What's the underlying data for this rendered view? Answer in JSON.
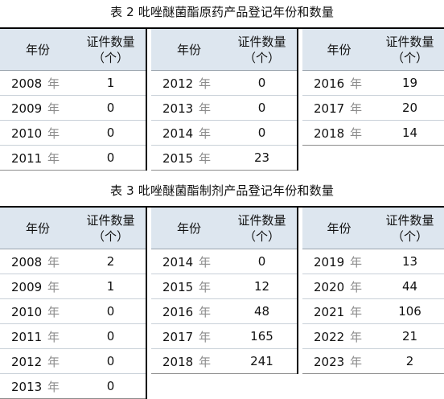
{
  "table2": {
    "caption": "表 2  吡唑醚菌酯原药产品登记年份和数量",
    "header_year": "年份",
    "header_count": "证件数量\n（个）",
    "year_suffix": "年",
    "columns": [
      [
        [
          "2008",
          "1"
        ],
        [
          "2009",
          "0"
        ],
        [
          "2010",
          "0"
        ],
        [
          "2011",
          "0"
        ]
      ],
      [
        [
          "2012",
          "0"
        ],
        [
          "2013",
          "0"
        ],
        [
          "2014",
          "0"
        ],
        [
          "2015",
          "23"
        ]
      ],
      [
        [
          "2016",
          "19"
        ],
        [
          "2017",
          "20"
        ],
        [
          "2018",
          "14"
        ]
      ]
    ]
  },
  "table3": {
    "caption": "表 3  吡唑醚菌酯制剂产品登记年份和数量",
    "header_year": "年份",
    "header_count": "证件数量\n（个）",
    "year_suffix": "年",
    "columns": [
      [
        [
          "2008",
          "2"
        ],
        [
          "2009",
          "1"
        ],
        [
          "2010",
          "0"
        ],
        [
          "2011",
          "0"
        ],
        [
          "2012",
          "0"
        ],
        [
          "2013",
          "0"
        ]
      ],
      [
        [
          "2014",
          "0"
        ],
        [
          "2015",
          "12"
        ],
        [
          "2016",
          "48"
        ],
        [
          "2017",
          "165"
        ],
        [
          "2018",
          "241"
        ]
      ],
      [
        [
          "2019",
          "13"
        ],
        [
          "2020",
          "44"
        ],
        [
          "2021",
          "106"
        ],
        [
          "2022",
          "21"
        ],
        [
          "2023",
          "2"
        ]
      ]
    ]
  }
}
